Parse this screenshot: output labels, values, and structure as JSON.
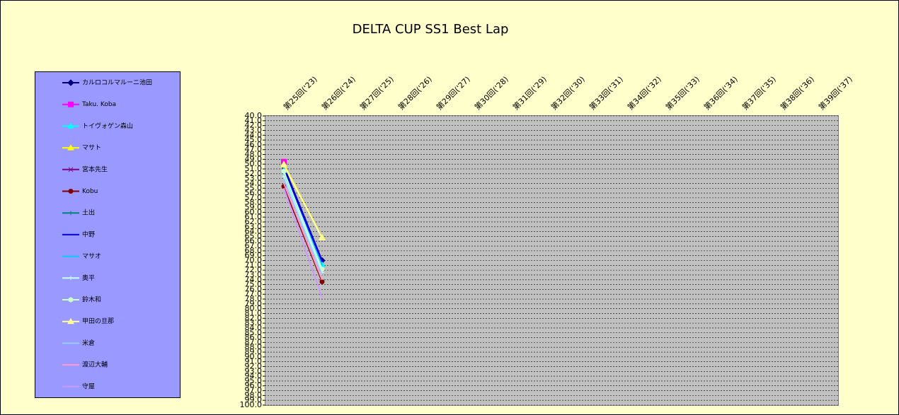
{
  "chart_data": {
    "type": "line",
    "title": "DELTA  CUP SS1 Best Lap",
    "categories": [
      "第25回('23)",
      "第26回('24)",
      "第27回('25)",
      "第28回('26)",
      "第29回('27)",
      "第30回('28)",
      "第31回('29)",
      "第32回('30)",
      "第33回('31)",
      "第34回('32)",
      "第35回('33)",
      "第36回('34)",
      "第37回('35)",
      "第38回('36)",
      "第39回('37)"
    ],
    "ylim": [
      40,
      100
    ],
    "y_reversed": true,
    "grid": true,
    "legend": "left",
    "yticks": [
      {
        "value": 40,
        "label": "40.0"
      },
      {
        "value": 41,
        "label": "41.0"
      },
      {
        "value": 42,
        "label": "42.0"
      },
      {
        "value": 43,
        "label": "43.0"
      },
      {
        "value": 44,
        "label": "44.0"
      },
      {
        "value": 45,
        "label": "45.0"
      },
      {
        "value": 46,
        "label": "46.0"
      },
      {
        "value": 47,
        "label": "47.0"
      },
      {
        "value": 48,
        "label": "48.0"
      },
      {
        "value": 49,
        "label": "49.0"
      },
      {
        "value": 50,
        "label": "50.0"
      },
      {
        "value": 51,
        "label": "51.0"
      },
      {
        "value": 52,
        "label": "52.0"
      },
      {
        "value": 53,
        "label": "53.0"
      },
      {
        "value": 54,
        "label": "54.0"
      },
      {
        "value": 55,
        "label": "55.0"
      },
      {
        "value": 56,
        "label": "56.0"
      },
      {
        "value": 57,
        "label": "57.0"
      },
      {
        "value": 58,
        "label": "58.0"
      },
      {
        "value": 59,
        "label": "59.0"
      },
      {
        "value": 60,
        "label": "60.0"
      },
      {
        "value": 61,
        "label": "61.0"
      },
      {
        "value": 62,
        "label": "62.0"
      },
      {
        "value": 63,
        "label": "63.0"
      },
      {
        "value": 64,
        "label": "64.0"
      },
      {
        "value": 65,
        "label": "65.0"
      },
      {
        "value": 66,
        "label": "66.0"
      },
      {
        "value": 67,
        "label": "67.0"
      },
      {
        "value": 68,
        "label": "68.0"
      },
      {
        "value": 69,
        "label": "69.0"
      },
      {
        "value": 70,
        "label": "70.0"
      },
      {
        "value": 71,
        "label": "71.0"
      },
      {
        "value": 72,
        "label": "72.0"
      },
      {
        "value": 73,
        "label": "73.0"
      },
      {
        "value": 74,
        "label": "74.0"
      },
      {
        "value": 75,
        "label": "75.0"
      },
      {
        "value": 76,
        "label": "76.0"
      },
      {
        "value": 77,
        "label": "77.0"
      },
      {
        "value": 78,
        "label": "78.0"
      },
      {
        "value": 79,
        "label": "79.0"
      },
      {
        "value": 80,
        "label": "80.0"
      },
      {
        "value": 81,
        "label": "81.0"
      },
      {
        "value": 82,
        "label": "82.0"
      },
      {
        "value": 83,
        "label": "83.0"
      },
      {
        "value": 84,
        "label": "84.0"
      },
      {
        "value": 85,
        "label": "85.0"
      },
      {
        "value": 86,
        "label": "86.0"
      },
      {
        "value": 87,
        "label": "87.0"
      },
      {
        "value": 88,
        "label": "88.0"
      },
      {
        "value": 89,
        "label": "89.0"
      },
      {
        "value": 90,
        "label": "90.0"
      },
      {
        "value": 91,
        "label": "91.0"
      },
      {
        "value": 92,
        "label": "92.0"
      },
      {
        "value": 93,
        "label": "93.0"
      },
      {
        "value": 94,
        "label": "94.0"
      },
      {
        "value": 95,
        "label": "95.0"
      },
      {
        "value": 96,
        "label": "96.0"
      },
      {
        "value": 97,
        "label": "97.0"
      },
      {
        "value": 98,
        "label": "98.0"
      },
      {
        "value": 99,
        "label": "99.0"
      },
      {
        "value": 100,
        "label": "100.0"
      }
    ],
    "series": [
      {
        "name": "カルロコルマルーニ池田",
        "color": "#000080",
        "marker": "diamond",
        "values": [
          50.5,
          70.0,
          null,
          null,
          null,
          null,
          null,
          null,
          null,
          null,
          null,
          null,
          null,
          null,
          null
        ]
      },
      {
        "name": "Taku. Koba",
        "color": "#ff00ff",
        "marker": "square",
        "values": [
          49.5,
          null,
          null,
          null,
          null,
          null,
          null,
          null,
          null,
          null,
          null,
          null,
          null,
          null,
          null
        ]
      },
      {
        "name": "トイヴォゲン森山",
        "color": "#00ffff",
        "marker": "triangle",
        "values": [
          51.3,
          70.8,
          null,
          null,
          null,
          null,
          null,
          null,
          null,
          null,
          null,
          null,
          null,
          null,
          null
        ]
      },
      {
        "name": "マサト",
        "color": "#ffff00",
        "marker": "triangle",
        "values": [
          50.0,
          65.2,
          null,
          null,
          null,
          null,
          null,
          null,
          null,
          null,
          null,
          null,
          null,
          null,
          null
        ]
      },
      {
        "name": "宮本先生",
        "color": "#800080",
        "marker": "x",
        "values": [
          null,
          null,
          null,
          null,
          null,
          null,
          null,
          null,
          null,
          null,
          null,
          null,
          null,
          null,
          null
        ]
      },
      {
        "name": "Kobu",
        "color": "#800000",
        "marker": "circle",
        "values": [
          54.6,
          74.4,
          null,
          null,
          null,
          null,
          null,
          null,
          null,
          null,
          null,
          null,
          null,
          null,
          null
        ]
      },
      {
        "name": "土出",
        "color": "#008080",
        "marker": "plus",
        "values": [
          null,
          null,
          null,
          null,
          null,
          null,
          null,
          null,
          null,
          null,
          null,
          null,
          null,
          null,
          null
        ]
      },
      {
        "name": "中野",
        "color": "#0000ff",
        "marker": "none",
        "values": [
          51.0,
          70.3,
          null,
          null,
          null,
          null,
          null,
          null,
          null,
          null,
          null,
          null,
          null,
          null,
          null
        ]
      },
      {
        "name": "マサオ",
        "color": "#00ccff",
        "marker": "none",
        "values": [
          52.0,
          71.0,
          null,
          null,
          null,
          null,
          null,
          null,
          null,
          null,
          null,
          null,
          null,
          null,
          null
        ]
      },
      {
        "name": "奥平",
        "color": "#ccffff",
        "marker": "plus",
        "values": [
          52.5,
          72.5,
          null,
          null,
          null,
          null,
          null,
          null,
          null,
          null,
          null,
          null,
          null,
          null,
          null
        ]
      },
      {
        "name": "鈴木和",
        "color": "#ccffcc",
        "marker": "circle",
        "values": [
          51.5,
          71.8,
          null,
          null,
          null,
          null,
          null,
          null,
          null,
          null,
          null,
          null,
          null,
          null,
          null
        ]
      },
      {
        "name": "甲田の旦那",
        "color": "#ffff99",
        "marker": "triangle",
        "values": [
          50.2,
          65.3,
          null,
          null,
          null,
          null,
          null,
          null,
          null,
          null,
          null,
          null,
          null,
          null,
          null
        ]
      },
      {
        "name": "米倉",
        "color": "#99ccff",
        "marker": "none",
        "values": [
          53.0,
          73.0,
          null,
          null,
          null,
          null,
          null,
          null,
          null,
          null,
          null,
          null,
          null,
          null,
          null
        ]
      },
      {
        "name": "渡辺大輔",
        "color": "#ff99cc",
        "marker": "none",
        "values": [
          54.0,
          74.0,
          null,
          null,
          null,
          null,
          null,
          null,
          null,
          null,
          null,
          null,
          null,
          null,
          null
        ]
      },
      {
        "name": "守屋",
        "color": "#cc99ff",
        "marker": "none",
        "values": [
          55.0,
          77.6,
          null,
          null,
          null,
          null,
          null,
          null,
          null,
          null,
          null,
          null,
          null,
          null,
          null
        ]
      }
    ]
  }
}
